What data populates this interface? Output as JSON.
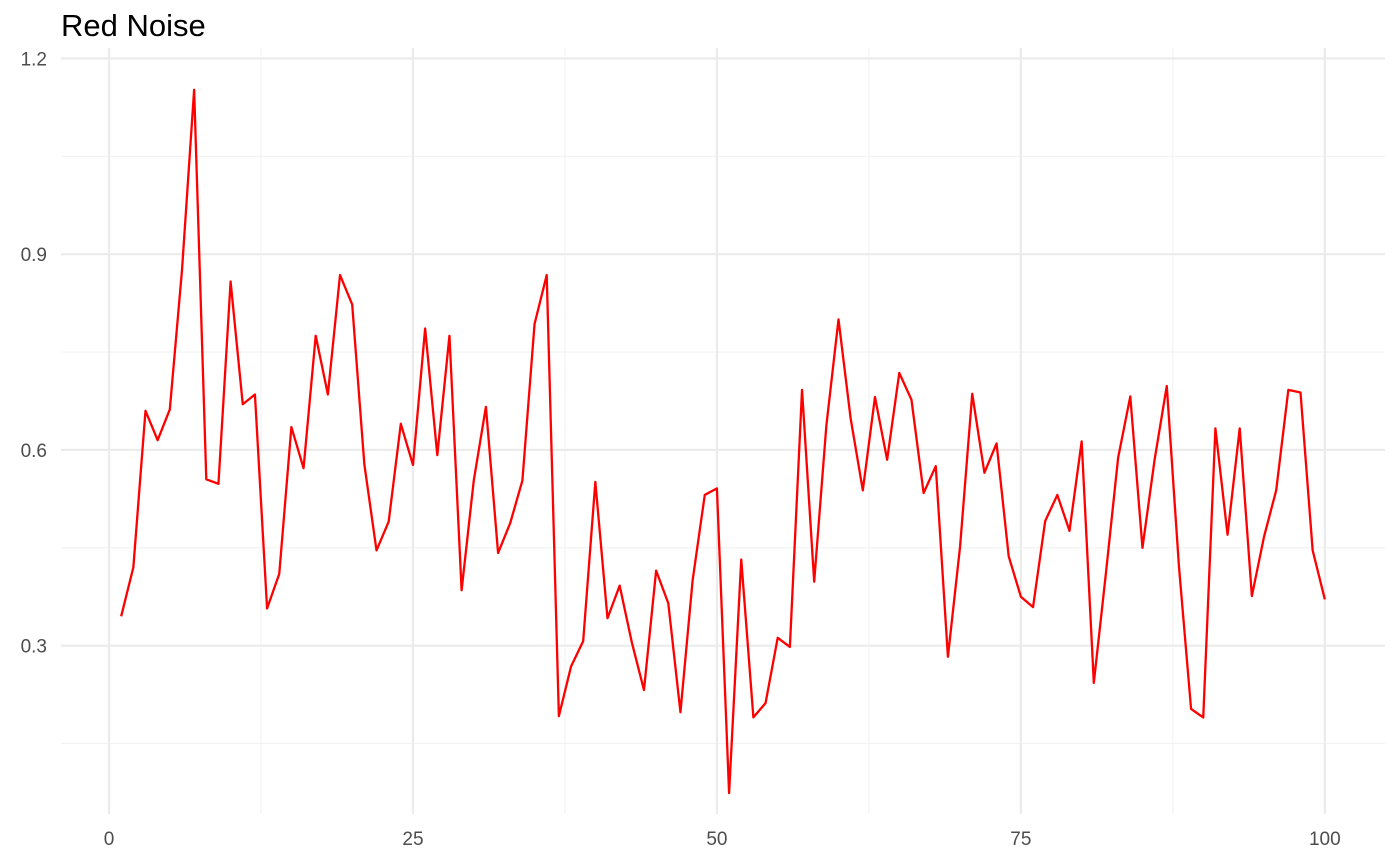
{
  "chart_data": {
    "type": "line",
    "title": "Red Noise",
    "xlabel": "",
    "ylabel": "",
    "xlim": [
      -3.95,
      104.95
    ],
    "ylim": [
      0.042,
      1.216
    ],
    "x_ticks": [
      0,
      25,
      50,
      75,
      100
    ],
    "x_tick_labels": [
      "0",
      "25",
      "50",
      "75",
      "100"
    ],
    "y_ticks": [
      0.3,
      0.6,
      0.9,
      1.2
    ],
    "y_tick_labels": [
      "0.3",
      "0.6",
      "0.9",
      "1.2"
    ],
    "grid": true,
    "legend": "none",
    "series": [
      {
        "color": "#ff0000",
        "x": [
          1,
          2,
          3,
          4,
          5,
          6,
          7,
          8,
          9,
          10,
          11,
          12,
          13,
          14,
          15,
          16,
          17,
          18,
          19,
          20,
          21,
          22,
          23,
          24,
          25,
          26,
          27,
          28,
          29,
          30,
          31,
          32,
          33,
          34,
          35,
          36,
          37,
          38,
          39,
          40,
          41,
          42,
          43,
          44,
          45,
          46,
          47,
          48,
          49,
          50,
          51,
          52,
          53,
          54,
          55,
          56,
          57,
          58,
          59,
          60,
          61,
          62,
          63,
          64,
          65,
          66,
          67,
          68,
          69,
          70,
          71,
          72,
          73,
          74,
          75,
          76,
          77,
          78,
          79,
          80,
          81,
          82,
          83,
          84,
          85,
          86,
          87,
          88,
          89,
          90,
          91,
          92,
          93,
          94,
          95,
          96,
          97,
          98,
          99,
          100
        ],
        "values": [
          0.345,
          0.42,
          0.66,
          0.615,
          0.662,
          0.875,
          1.152,
          0.555,
          0.548,
          0.858,
          0.67,
          0.685,
          0.357,
          0.41,
          0.635,
          0.572,
          0.775,
          0.685,
          0.868,
          0.823,
          0.578,
          0.446,
          0.49,
          0.64,
          0.577,
          0.786,
          0.592,
          0.775,
          0.385,
          0.553,
          0.666,
          0.442,
          0.488,
          0.553,
          0.793,
          0.868,
          0.192,
          0.268,
          0.307,
          0.551,
          0.342,
          0.392,
          0.305,
          0.232,
          0.415,
          0.365,
          0.198,
          0.4,
          0.531,
          0.541,
          0.074,
          0.432,
          0.19,
          0.212,
          0.312,
          0.298,
          0.692,
          0.398,
          0.637,
          0.8,
          0.648,
          0.538,
          0.681,
          0.585,
          0.718,
          0.677,
          0.534,
          0.575,
          0.283,
          0.452,
          0.686,
          0.565,
          0.61,
          0.437,
          0.375,
          0.359,
          0.491,
          0.531,
          0.476,
          0.613,
          0.243,
          0.412,
          0.588,
          0.682,
          0.45,
          0.585,
          0.698,
          0.422,
          0.203,
          0.19,
          0.633,
          0.47,
          0.633,
          0.376,
          0.467,
          0.538,
          0.692,
          0.688,
          0.446,
          0.371
        ]
      }
    ]
  }
}
